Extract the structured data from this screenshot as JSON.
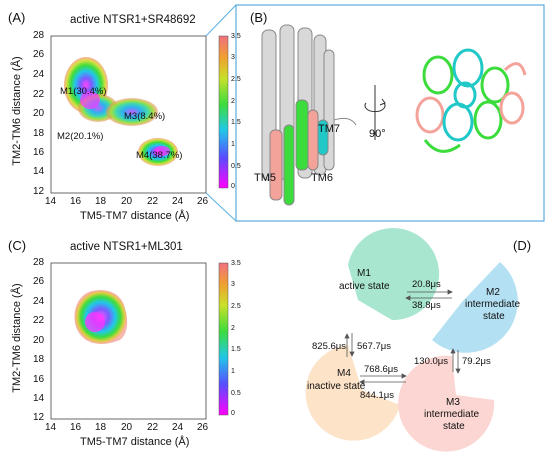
{
  "panels": {
    "A": {
      "letter": "(A)",
      "title": "active NTSR1+SR48692",
      "xlabel": "TM5-TM7 distance (Å)",
      "ylabel": "TM2-TM6 distance (Å)",
      "xticks": [
        "14",
        "16",
        "18",
        "20",
        "22",
        "24",
        "26"
      ],
      "yticks": [
        "12",
        "14",
        "16",
        "18",
        "20",
        "22",
        "24",
        "26",
        "28"
      ],
      "colorbar_ticks": [
        "3.5",
        "3",
        "2.5",
        "2",
        "1.5",
        "1",
        "0.5",
        "0"
      ],
      "state_labels": [
        {
          "id": "M1",
          "text": "M1(30.4%)"
        },
        {
          "id": "M2",
          "text": "M2(20.1%)"
        },
        {
          "id": "M3",
          "text": "M3(8.4%)"
        },
        {
          "id": "M4",
          "text": "M4(38.7%)"
        }
      ]
    },
    "B": {
      "letter": "(B)",
      "helix_labels": [
        "TM7",
        "TM5",
        "TM6"
      ],
      "rotation_label": "90°"
    },
    "C": {
      "letter": "(C)",
      "title": "active NTSR1+ML301",
      "xlabel": "TM5-TM7 distance (Å)",
      "ylabel": "TM2-TM6 distance (Å)",
      "xticks": [
        "14",
        "16",
        "18",
        "20",
        "22",
        "24",
        "26"
      ],
      "yticks": [
        "12",
        "14",
        "16",
        "18",
        "20",
        "22",
        "24",
        "26",
        "28"
      ],
      "colorbar_ticks": [
        "3.5",
        "3",
        "2.5",
        "2",
        "1.5",
        "1",
        "0.5",
        "0"
      ]
    },
    "D": {
      "letter": "(D)",
      "states": [
        {
          "id": "M1",
          "name": "M1",
          "sub": "active state",
          "color": "#a8e6cf"
        },
        {
          "id": "M2",
          "name": "M2",
          "sub1": "intermediate",
          "sub2": "state",
          "color": "#b3e0f2"
        },
        {
          "id": "M3",
          "name": "M3",
          "sub1": "intermediate",
          "sub2": "state",
          "color": "#fbd6d2"
        },
        {
          "id": "M4",
          "name": "M4",
          "sub": "inactive state",
          "color": "#fde3c8"
        }
      ],
      "rates": {
        "m1_to_m2": "20.8μs",
        "m2_to_m1": "38.8μs",
        "m4_to_m1": "825.6μs",
        "m1_to_m4": "567.7μs",
        "m2_to_m3": "130.0μs",
        "m3_to_m2": "79.2μs",
        "m4_to_m3": "768.6μs",
        "m3_to_m4": "844.1μs"
      }
    }
  },
  "colors": {
    "frame_blue": "#5aaee0",
    "colorbar_stops": [
      "#ff00ff",
      "#2f6bff",
      "#20d0e0",
      "#3ddc3d",
      "#c8e02a",
      "#f0a030",
      "#f07080"
    ]
  }
}
